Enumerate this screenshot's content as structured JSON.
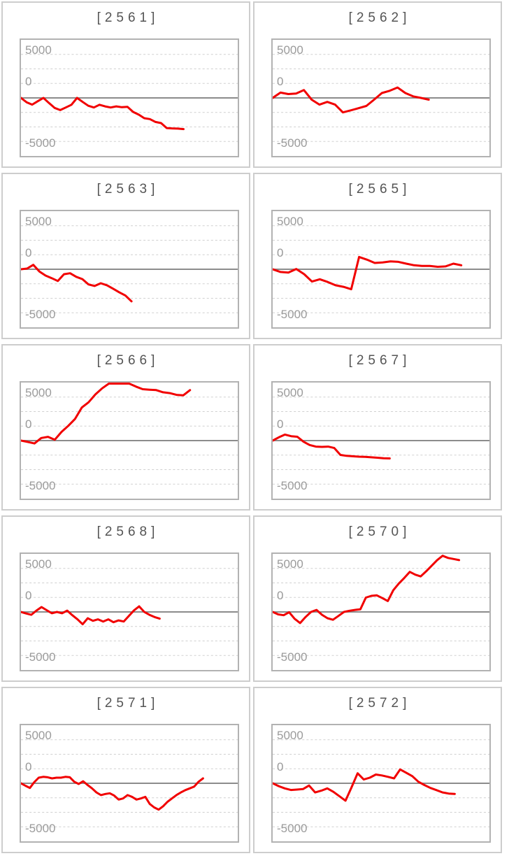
{
  "page": {
    "background": "#ffffff",
    "description_labels": {
      "y_top": "5000",
      "y_zero": "0",
      "y_bottom": "-5000"
    }
  },
  "style": {
    "line_color": "#f10000",
    "grid_color": "#d0d0d0",
    "zero_line_color": "#8c8c8c",
    "plot_border_color": "#b2b2b2",
    "panel_border_color": "#cdcdcd",
    "title_color": "#545454",
    "axis_label_color": "#9b9b9b"
  },
  "y_axis": {
    "top_label": "5000",
    "zero_label": "0",
    "bottom_label": "-5000"
  },
  "chart_data": [
    {
      "type": "line",
      "title": "[2561]",
      "machine": "2561",
      "y_tick_labels": [
        "5000",
        "0",
        "-5000"
      ],
      "ylim": [
        -6667,
        6667
      ],
      "grid": "horizontal-dotted-7-lines-solid-zero",
      "legend": "none",
      "x_end_fraction": 0.75,
      "series": [
        {
          "name": "payout",
          "values": [
            0,
            -500,
            -770,
            -380,
            0,
            -590,
            -1150,
            -1400,
            -1100,
            -790,
            0,
            -460,
            -900,
            -1100,
            -790,
            -970,
            -1100,
            -970,
            -1070,
            -1020,
            -1610,
            -1920,
            -2330,
            -2430,
            -2760,
            -2890,
            -3460,
            -3500,
            -3530,
            -3580
          ]
        }
      ]
    },
    {
      "type": "line",
      "title": "[2562]",
      "machine": "2562",
      "y_tick_labels": [
        "5000",
        "0",
        "-5000"
      ],
      "ylim": [
        -6667,
        6667
      ],
      "grid": "horizontal-dotted-7-lines-solid-zero",
      "legend": "none",
      "x_end_fraction": 0.72,
      "series": [
        {
          "name": "payout",
          "values": [
            0,
            610,
            440,
            510,
            900,
            -200,
            -770,
            -460,
            -770,
            -1660,
            -1430,
            -1180,
            -920,
            -200,
            560,
            820,
            1200,
            560,
            180,
            0,
            -200
          ]
        }
      ]
    },
    {
      "type": "line",
      "title": "[2563]",
      "machine": "2563",
      "y_tick_labels": [
        "5000",
        "0",
        "-5000"
      ],
      "ylim": [
        -6667,
        6667
      ],
      "grid": "horizontal-dotted-7-lines-solid-zero",
      "legend": "none",
      "x_end_fraction": 0.51,
      "series": [
        {
          "name": "payout",
          "values": [
            0,
            80,
            510,
            -260,
            -720,
            -1020,
            -1350,
            -570,
            -460,
            -870,
            -1130,
            -1740,
            -1920,
            -1610,
            -1840,
            -2230,
            -2640,
            -3020,
            -3690
          ]
        }
      ]
    },
    {
      "type": "line",
      "title": "[2565]",
      "machine": "2565",
      "y_tick_labels": [
        "5000",
        "0",
        "-5000"
      ],
      "ylim": [
        -6667,
        6667
      ],
      "grid": "horizontal-dotted-7-lines-solid-zero",
      "legend": "none",
      "x_end_fraction": 0.87,
      "series": [
        {
          "name": "payout",
          "values": [
            0,
            -310,
            -380,
            30,
            -560,
            -1410,
            -1150,
            -1460,
            -1840,
            -2020,
            -2300,
            1410,
            1100,
            720,
            790,
            900,
            850,
            640,
            460,
            380,
            380,
            280,
            330,
            640,
            460
          ]
        }
      ]
    },
    {
      "type": "line",
      "title": "[2566]",
      "machine": "2566",
      "y_tick_labels": [
        "5000",
        "0",
        "-5000"
      ],
      "ylim": [
        -6667,
        6667
      ],
      "grid": "horizontal-dotted-7-lines-solid-zero",
      "legend": "none",
      "x_end_fraction": 0.78,
      "series": [
        {
          "name": "payout",
          "values": [
            0,
            -150,
            -330,
            300,
            430,
            100,
            1000,
            1700,
            2500,
            3800,
            4400,
            5300,
            6000,
            6700,
            6700,
            6700,
            6700,
            6200,
            5900,
            5850,
            5800,
            5550,
            5450,
            5250,
            5200,
            5800
          ]
        }
      ]
    },
    {
      "type": "line",
      "title": "[2567]",
      "machine": "2567",
      "y_tick_labels": [
        "5000",
        "0",
        "-5000"
      ],
      "ylim": [
        -6667,
        6667
      ],
      "grid": "horizontal-dotted-7-lines-solid-zero",
      "legend": "none",
      "x_end_fraction": 0.54,
      "series": [
        {
          "name": "payout",
          "values": [
            0,
            380,
            690,
            510,
            440,
            -130,
            -510,
            -690,
            -720,
            -690,
            -850,
            -1650,
            -1750,
            -1800,
            -1850,
            -1870,
            -1920,
            -1970,
            -2030,
            -2050
          ]
        }
      ]
    },
    {
      "type": "line",
      "title": "[2568]",
      "machine": "2568",
      "y_tick_labels": [
        "5000",
        "0",
        "-5000"
      ],
      "ylim": [
        -6667,
        6667
      ],
      "grid": "horizontal-dotted-7-lines-solid-zero",
      "legend": "none",
      "x_end_fraction": 0.64,
      "series": [
        {
          "name": "payout",
          "values": [
            0,
            -180,
            -330,
            150,
            560,
            200,
            -150,
            0,
            -150,
            150,
            -380,
            -850,
            -1410,
            -720,
            -1020,
            -850,
            -1100,
            -850,
            -1180,
            -970,
            -1100,
            -460,
            180,
            640,
            0,
            -330,
            -590,
            -770
          ]
        }
      ]
    },
    {
      "type": "line",
      "title": "[2570]",
      "machine": "2570",
      "y_tick_labels": [
        "5000",
        "0",
        "-5000"
      ],
      "ylim": [
        -6667,
        6667
      ],
      "grid": "horizontal-dotted-7-lines-solid-zero",
      "legend": "none",
      "x_end_fraction": 0.86,
      "series": [
        {
          "name": "payout",
          "values": [
            0,
            -280,
            -380,
            -30,
            -790,
            -1280,
            -590,
            0,
            230,
            -330,
            -720,
            -900,
            -460,
            0,
            130,
            230,
            300,
            1650,
            1850,
            1900,
            1590,
            1250,
            2500,
            3260,
            3900,
            4600,
            4280,
            4080,
            4670,
            5310,
            5950,
            6450,
            6200,
            6080,
            5950
          ]
        }
      ]
    },
    {
      "type": "line",
      "title": "[2571]",
      "machine": "2571",
      "y_tick_labels": [
        "5000",
        "0",
        "-5000"
      ],
      "ylim": [
        -6667,
        6667
      ],
      "grid": "horizontal-dotted-7-lines-solid-zero",
      "legend": "none",
      "x_end_fraction": 0.84,
      "series": [
        {
          "name": "payout",
          "values": [
            0,
            -280,
            -540,
            130,
            640,
            740,
            690,
            560,
            640,
            640,
            740,
            690,
            180,
            -80,
            230,
            -200,
            -590,
            -1050,
            -1360,
            -1230,
            -1150,
            -1410,
            -1870,
            -1740,
            -1360,
            -1560,
            -1870,
            -1740,
            -1560,
            -2380,
            -2770,
            -3030,
            -2640,
            -2130,
            -1740,
            -1360,
            -1050,
            -790,
            -590,
            -380,
            180,
            560
          ]
        }
      ]
    },
    {
      "type": "line",
      "title": "[2572]",
      "machine": "2572",
      "y_tick_labels": [
        "5000",
        "0",
        "-5000"
      ],
      "ylim": [
        -6667,
        6667
      ],
      "grid": "horizontal-dotted-7-lines-solid-zero",
      "legend": "none",
      "x_end_fraction": 0.84,
      "series": [
        {
          "name": "payout",
          "values": [
            0,
            -330,
            -590,
            -770,
            -720,
            -670,
            -260,
            -1050,
            -850,
            -590,
            -980,
            -1490,
            -2000,
            -460,
            1150,
            430,
            640,
            1000,
            900,
            740,
            560,
            1590,
            1210,
            820,
            180,
            -200,
            -540,
            -790,
            -1050,
            -1180,
            -1230
          ]
        }
      ]
    }
  ]
}
